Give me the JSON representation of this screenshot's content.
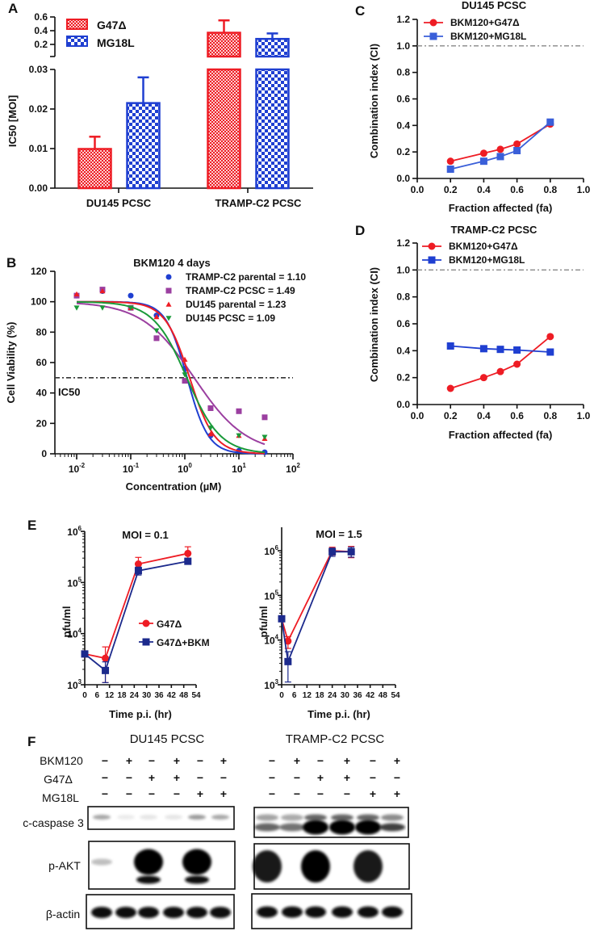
{
  "panel_letters": {
    "a": "A",
    "b": "B",
    "c": "C",
    "d": "D",
    "e": "E",
    "f": "F"
  },
  "colors": {
    "red": "#ee1c24",
    "blue": "#1f3fd1",
    "purple": "#9b3fa0",
    "green": "#1a9a3a",
    "navy": "#1c2a8c",
    "dash": "#888888"
  },
  "chart_data": [
    {
      "panel": "A",
      "type": "bar",
      "ylabel": "IC50 [MOI]",
      "categories": [
        "DU145 PCSC",
        "TRAMP-C2 PCSC"
      ],
      "broken_axis": true,
      "ylim_lower": [
        0,
        0.03
      ],
      "ylim_upper": [
        0.025,
        0.6
      ],
      "y_ticks_lower": [
        0,
        0.01,
        0.02,
        0.03
      ],
      "y_tick_labels_lower": [
        "0.00",
        "0.01",
        "0.02",
        "0.03"
      ],
      "y_ticks_upper": [
        0.2,
        0.4,
        0.6
      ],
      "y_tick_labels_upper": [
        "0.2",
        "0.4",
        "0.6"
      ],
      "series": [
        {
          "name": "G47Δ",
          "values": [
            0.0099,
            0.37
          ],
          "error_top": [
            0.013,
            0.55
          ],
          "color": "#ee1c24",
          "pattern": "fine-checker"
        },
        {
          "name": "MG18L",
          "values": [
            0.0215,
            0.28
          ],
          "error_top": [
            0.028,
            0.36
          ],
          "color": "#1f3fd1",
          "pattern": "checker"
        }
      ],
      "legend": "top-left"
    },
    {
      "panel": "B",
      "type": "scatter",
      "title": "BKM120 4 days",
      "xlabel": "Concentration (µM)",
      "ylabel": "Cell Viability (%)",
      "xscale": "log",
      "xlim": [
        0.004,
        100
      ],
      "ylim": [
        0,
        120
      ],
      "x_tick_exponents": [
        -2,
        -1,
        0,
        1,
        2
      ],
      "y_ticks": [
        0,
        20,
        40,
        60,
        80,
        100,
        120
      ],
      "x": [
        0.01,
        0.03,
        0.1,
        0.3,
        1,
        3,
        10,
        30
      ],
      "reference_line": {
        "y": 50,
        "label": "IC50"
      },
      "series": [
        {
          "label": "TRAMP-C2 parental = 1.10",
          "ic50": 1.1,
          "marker": "circle",
          "color": "#1f3fd1",
          "values": [
            104,
            107,
            104,
            91,
            56,
            12,
            2,
            1
          ]
        },
        {
          "label": "TRAMP-C2 PCSC = 1.49",
          "ic50": 1.49,
          "marker": "square",
          "color": "#9b3fa0",
          "values": [
            104,
            108,
            96,
            76,
            48,
            30,
            28,
            24
          ]
        },
        {
          "label": "DU145 parental = 1.23",
          "ic50": 1.23,
          "marker": "triangle-up",
          "color": "#ee1c24",
          "values": [
            105,
            107,
            96,
            90,
            62,
            13,
            12,
            10
          ]
        },
        {
          "label": "DU145 PCSC = 1.09",
          "ic50": 1.09,
          "marker": "triangle-down",
          "color": "#1a9a3a",
          "values": [
            96,
            96,
            96,
            81,
            52,
            17,
            12,
            11
          ]
        }
      ],
      "legend": "top-right"
    },
    {
      "panel": "C",
      "type": "line",
      "title": "DU145 PCSC",
      "xlabel": "Fraction affected (fa)",
      "ylabel": "Combination index (CI)",
      "xlim": [
        0,
        1
      ],
      "ylim": [
        0,
        1.2
      ],
      "x_tick_labels": [
        "0.0",
        "0.2",
        "0.4",
        "0.6",
        "0.8",
        "1.0"
      ],
      "y_tick_labels": [
        "0.0",
        "0.2",
        "0.4",
        "0.6",
        "0.8",
        "1.0",
        "1.2"
      ],
      "reference_line": {
        "y": 1.0
      },
      "x": [
        0.2,
        0.4,
        0.5,
        0.6,
        0.8
      ],
      "series": [
        {
          "name": "BKM120+G47Δ",
          "marker": "circle",
          "color": "#ee1c24",
          "values": [
            0.13,
            0.19,
            0.22,
            0.26,
            0.41
          ]
        },
        {
          "name": "BKM120+MG18L",
          "marker": "square",
          "color": "#3a5fd9",
          "values": [
            0.07,
            0.13,
            0.165,
            0.21,
            0.425
          ]
        }
      ],
      "legend": "top-left"
    },
    {
      "panel": "D",
      "type": "line",
      "title": "TRAMP-C2 PCSC",
      "xlabel": "Fraction affected (fa)",
      "ylabel": "Combination index (CI)",
      "xlim": [
        0,
        1
      ],
      "ylim": [
        0,
        1.2
      ],
      "x_tick_labels": [
        "0.0",
        "0.2",
        "0.4",
        "0.6",
        "0.8",
        "1.0"
      ],
      "y_tick_labels": [
        "0.0",
        "0.2",
        "0.4",
        "0.6",
        "0.8",
        "1.0",
        "1.2"
      ],
      "reference_line": {
        "y": 1.0
      },
      "x": [
        0.2,
        0.4,
        0.5,
        0.6,
        0.8
      ],
      "series": [
        {
          "name": "BKM120+G47Δ",
          "marker": "circle",
          "color": "#ee1c24",
          "values": [
            0.12,
            0.2,
            0.245,
            0.3,
            0.505
          ]
        },
        {
          "name": "BKM120+MG18L",
          "marker": "square",
          "color": "#1f3fd1",
          "values": [
            0.435,
            0.415,
            0.41,
            0.405,
            0.39
          ]
        }
      ],
      "legend": "top-left"
    },
    {
      "panel": "E-left",
      "type": "line",
      "title": "MOI = 0.1",
      "xlabel": "Time p.i. (hr)",
      "ylabel": "pfu/ml",
      "yscale": "log",
      "xlim": [
        0,
        54
      ],
      "ylim": [
        1000,
        1000000
      ],
      "x_ticks": [
        0,
        6,
        12,
        18,
        24,
        30,
        36,
        42,
        48,
        54
      ],
      "y_tick_exponents": [
        3,
        4,
        5,
        6
      ],
      "x": [
        0,
        10,
        26,
        50
      ],
      "series": [
        {
          "name": "G47Δ",
          "marker": "circle",
          "color": "#ee1c24",
          "values": [
            4000,
            3300,
            230000,
            370000
          ],
          "err_high": [
            4600,
            5500,
            310000,
            500000
          ],
          "err_low": [
            3500,
            1100,
            180000,
            300000
          ]
        },
        {
          "name": "G47Δ+BKM",
          "marker": "square",
          "color": "#1c2a8c",
          "values": [
            4000,
            1900,
            170000,
            260000
          ],
          "err_high": [
            4500,
            2800,
            200000,
            290000
          ],
          "err_low": [
            3600,
            1100,
            140000,
            230000
          ]
        }
      ],
      "legend": "center"
    },
    {
      "panel": "E-right",
      "type": "line",
      "title": "MOI = 1.5",
      "xlabel": "Time p.i. (hr)",
      "ylabel": "pfu/ml",
      "yscale": "log",
      "xlim": [
        0,
        54
      ],
      "ylim": [
        1000,
        3300000
      ],
      "x_ticks": [
        0,
        6,
        12,
        18,
        24,
        30,
        36,
        42,
        48,
        54
      ],
      "y_tick_exponents": [
        3,
        4,
        5,
        6
      ],
      "x": [
        0,
        3,
        24,
        33
      ],
      "series": [
        {
          "name": "G47Δ",
          "marker": "circle",
          "color": "#ee1c24",
          "values": [
            30000,
            9500,
            1000000,
            950000
          ],
          "err_high": [
            35000,
            12000,
            1200000,
            1250000
          ],
          "err_low": [
            26000,
            6500,
            800000,
            700000
          ]
        },
        {
          "name": "G47Δ+BKM",
          "marker": "square",
          "color": "#1c2a8c",
          "values": [
            30000,
            3300,
            950000,
            950000
          ],
          "err_high": [
            34000,
            5500,
            1150000,
            1200000
          ],
          "err_low": [
            26000,
            1150,
            750000,
            720000
          ]
        }
      ]
    },
    {
      "panel": "F",
      "type": "table",
      "conditions": [
        {
          "name": "BKM120",
          "values": [
            "−",
            "+",
            "−",
            "+",
            "−",
            "+"
          ]
        },
        {
          "name": "G47Δ",
          "values": [
            "−",
            "−",
            "+",
            "+",
            "−",
            "−"
          ]
        },
        {
          "name": "MG18L",
          "values": [
            "−",
            "−",
            "−",
            "−",
            "+",
            "+"
          ]
        }
      ],
      "blots": [
        {
          "title": "DU145 PCSC",
          "rows": [
            {
              "label": "c-caspase 3",
              "band_intensity": [
                0.35,
                0.08,
                0.1,
                0.1,
                0.4,
                0.35
              ]
            },
            {
              "label": "p-AKT",
              "band_intensity": [
                0.25,
                0,
                1,
                0,
                1,
                0
              ]
            },
            {
              "label": "β-actin",
              "band_intensity": [
                1,
                1,
                1,
                1,
                1,
                1
              ]
            }
          ]
        },
        {
          "title": "TRAMP-C2 PCSC",
          "rows": [
            {
              "label": "c-caspase 3",
              "band_intensity": [
                0.6,
                0.55,
                1,
                1,
                1,
                0.75
              ]
            },
            {
              "label": "p-AKT",
              "band_intensity": [
                0.9,
                0,
                1,
                0,
                0.9,
                0
              ]
            },
            {
              "label": "β-actin",
              "band_intensity": [
                1,
                1,
                1,
                1,
                1,
                1
              ]
            }
          ]
        }
      ]
    }
  ]
}
